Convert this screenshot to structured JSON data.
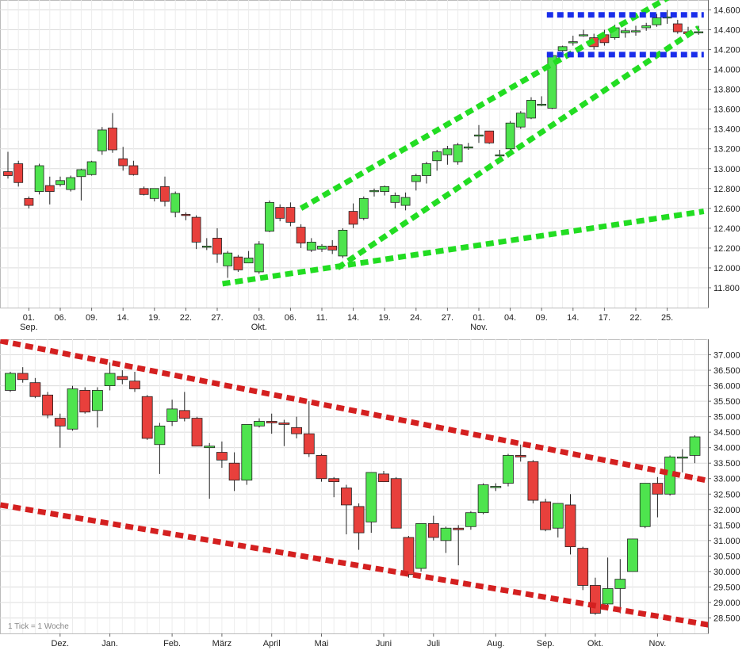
{
  "chart_data": [
    {
      "type": "candlestick",
      "title": "",
      "xlabel": "",
      "ylabel": "",
      "ylim": [
        11.6,
        14.7
      ],
      "y_ticks": [
        11.8,
        12.0,
        12.2,
        12.4,
        12.6,
        12.8,
        13.0,
        13.2,
        13.4,
        13.6,
        13.8,
        14.0,
        14.2,
        14.4,
        14.6
      ],
      "y_tick_labels": [
        "11.800",
        "12.000",
        "12.200",
        "12.400",
        "12.600",
        "12.800",
        "13.000",
        "13.200",
        "13.400",
        "13.600",
        "13.800",
        "14.000",
        "14.200",
        "14.400",
        "14.600"
      ],
      "x_ticks": [
        {
          "label": "01.",
          "sub": "Sep.",
          "i": 2
        },
        {
          "label": "06.",
          "i": 5
        },
        {
          "label": "09.",
          "i": 8
        },
        {
          "label": "14.",
          "i": 11
        },
        {
          "label": "19.",
          "i": 14
        },
        {
          "label": "22.",
          "i": 17
        },
        {
          "label": "27.",
          "i": 20
        },
        {
          "label": "03.",
          "sub": "Okt.",
          "i": 24
        },
        {
          "label": "06.",
          "i": 27
        },
        {
          "label": "11.",
          "i": 30
        },
        {
          "label": "14.",
          "i": 33
        },
        {
          "label": "19.",
          "i": 36
        },
        {
          "label": "24.",
          "i": 39
        },
        {
          "label": "27.",
          "i": 42
        },
        {
          "label": "01.",
          "sub": "Nov.",
          "i": 45
        },
        {
          "label": "04.",
          "i": 48
        },
        {
          "label": "09.",
          "i": 51
        },
        {
          "label": "14.",
          "i": 54
        },
        {
          "label": "17.",
          "i": 57
        },
        {
          "label": "22.",
          "i": 60
        },
        {
          "label": "25.",
          "i": 63
        }
      ],
      "candles": [
        {
          "o": 12.97,
          "h": 13.17,
          "l": 12.9,
          "c": 12.93
        },
        {
          "o": 13.05,
          "h": 13.08,
          "l": 12.82,
          "c": 12.86
        },
        {
          "o": 12.7,
          "h": 12.72,
          "l": 12.6,
          "c": 12.63
        },
        {
          "o": 12.77,
          "h": 13.05,
          "l": 12.74,
          "c": 13.03
        },
        {
          "o": 12.83,
          "h": 12.92,
          "l": 12.64,
          "c": 12.77
        },
        {
          "o": 12.84,
          "h": 12.92,
          "l": 12.82,
          "c": 12.88
        },
        {
          "o": 12.79,
          "h": 12.93,
          "l": 12.77,
          "c": 12.91
        },
        {
          "o": 12.92,
          "h": 13.0,
          "l": 12.68,
          "c": 12.99
        },
        {
          "o": 12.94,
          "h": 13.08,
          "l": 12.93,
          "c": 13.07
        },
        {
          "o": 13.18,
          "h": 13.42,
          "l": 13.14,
          "c": 13.39
        },
        {
          "o": 13.41,
          "h": 13.56,
          "l": 13.16,
          "c": 13.19
        },
        {
          "o": 13.1,
          "h": 13.22,
          "l": 12.98,
          "c": 13.03
        },
        {
          "o": 13.03,
          "h": 13.08,
          "l": 12.93,
          "c": 12.94
        },
        {
          "o": 12.8,
          "h": 12.82,
          "l": 12.73,
          "c": 12.74
        },
        {
          "o": 12.7,
          "h": 12.8,
          "l": 12.67,
          "c": 12.8
        },
        {
          "o": 12.82,
          "h": 12.92,
          "l": 12.62,
          "c": 12.67
        },
        {
          "o": 12.56,
          "h": 12.77,
          "l": 12.51,
          "c": 12.75
        },
        {
          "o": 12.54,
          "h": 12.56,
          "l": 12.48,
          "c": 12.53
        },
        {
          "o": 12.51,
          "h": 12.53,
          "l": 12.19,
          "c": 12.26
        },
        {
          "o": 12.22,
          "h": 12.3,
          "l": 12.18,
          "c": 12.22
        },
        {
          "o": 12.3,
          "h": 12.4,
          "l": 12.05,
          "c": 12.14
        },
        {
          "o": 12.02,
          "h": 12.17,
          "l": 11.9,
          "c": 12.15
        },
        {
          "o": 12.11,
          "h": 12.13,
          "l": 11.96,
          "c": 11.98
        },
        {
          "o": 12.05,
          "h": 12.17,
          "l": 12.05,
          "c": 12.1
        },
        {
          "o": 11.96,
          "h": 12.27,
          "l": 11.94,
          "c": 12.24
        },
        {
          "o": 12.37,
          "h": 12.68,
          "l": 12.36,
          "c": 12.66
        },
        {
          "o": 12.61,
          "h": 12.64,
          "l": 12.47,
          "c": 12.5
        },
        {
          "o": 12.61,
          "h": 12.66,
          "l": 12.42,
          "c": 12.46
        },
        {
          "o": 12.41,
          "h": 12.44,
          "l": 12.2,
          "c": 12.25
        },
        {
          "o": 12.18,
          "h": 12.3,
          "l": 12.16,
          "c": 12.26
        },
        {
          "o": 12.19,
          "h": 12.24,
          "l": 12.16,
          "c": 12.22
        },
        {
          "o": 12.22,
          "h": 12.28,
          "l": 12.14,
          "c": 12.18
        },
        {
          "o": 12.12,
          "h": 12.4,
          "l": 12.1,
          "c": 12.38
        },
        {
          "o": 12.57,
          "h": 12.65,
          "l": 12.4,
          "c": 12.44
        },
        {
          "o": 12.5,
          "h": 12.72,
          "l": 12.48,
          "c": 12.7
        },
        {
          "o": 12.78,
          "h": 12.8,
          "l": 12.72,
          "c": 12.78
        },
        {
          "o": 12.77,
          "h": 12.83,
          "l": 12.73,
          "c": 12.82
        },
        {
          "o": 12.66,
          "h": 12.76,
          "l": 12.6,
          "c": 12.73
        },
        {
          "o": 12.63,
          "h": 12.76,
          "l": 12.58,
          "c": 12.71
        },
        {
          "o": 12.87,
          "h": 12.95,
          "l": 12.78,
          "c": 12.93
        },
        {
          "o": 12.93,
          "h": 13.07,
          "l": 12.85,
          "c": 13.05
        },
        {
          "o": 13.08,
          "h": 13.19,
          "l": 12.98,
          "c": 13.17
        },
        {
          "o": 13.14,
          "h": 13.23,
          "l": 13.04,
          "c": 13.2
        },
        {
          "o": 13.07,
          "h": 13.26,
          "l": 13.04,
          "c": 13.24
        },
        {
          "o": 13.22,
          "h": 13.26,
          "l": 13.19,
          "c": 13.22
        },
        {
          "o": 13.34,
          "h": 13.44,
          "l": 13.26,
          "c": 13.34
        },
        {
          "o": 13.38,
          "h": 13.38,
          "l": 13.25,
          "c": 13.26
        },
        {
          "o": 13.14,
          "h": 13.19,
          "l": 13.06,
          "c": 13.14
        },
        {
          "o": 13.2,
          "h": 13.48,
          "l": 13.18,
          "c": 13.46
        },
        {
          "o": 13.42,
          "h": 13.58,
          "l": 13.4,
          "c": 13.56
        },
        {
          "o": 13.51,
          "h": 13.72,
          "l": 13.5,
          "c": 13.69
        },
        {
          "o": 13.65,
          "h": 13.73,
          "l": 13.63,
          "c": 13.65
        },
        {
          "o": 13.61,
          "h": 14.14,
          "l": 13.6,
          "c": 14.14
        },
        {
          "o": 14.19,
          "h": 14.24,
          "l": 14.18,
          "c": 14.23
        },
        {
          "o": 14.27,
          "h": 14.34,
          "l": 14.24,
          "c": 14.28
        },
        {
          "o": 14.35,
          "h": 14.4,
          "l": 14.33,
          "c": 14.35
        },
        {
          "o": 14.32,
          "h": 14.36,
          "l": 14.2,
          "c": 14.23
        },
        {
          "o": 14.35,
          "h": 14.4,
          "l": 14.24,
          "c": 14.27
        },
        {
          "o": 14.32,
          "h": 14.45,
          "l": 14.3,
          "c": 14.42
        },
        {
          "o": 14.37,
          "h": 14.42,
          "l": 14.32,
          "c": 14.39
        },
        {
          "o": 14.38,
          "h": 14.44,
          "l": 14.34,
          "c": 14.39
        },
        {
          "o": 14.42,
          "h": 14.47,
          "l": 14.39,
          "c": 14.44
        },
        {
          "o": 14.45,
          "h": 14.56,
          "l": 14.43,
          "c": 14.52
        },
        {
          "o": 14.53,
          "h": 14.6,
          "l": 14.46,
          "c": 14.53
        },
        {
          "o": 14.46,
          "h": 14.5,
          "l": 14.36,
          "c": 14.38
        },
        {
          "o": 14.38,
          "h": 14.43,
          "l": 14.34,
          "c": 14.36
        },
        {
          "o": 14.38,
          "h": 14.44,
          "l": 14.35,
          "c": 14.38
        }
      ]
    },
    {
      "type": "candlestick",
      "title": "",
      "xlabel": "",
      "ylabel": "",
      "ylim": [
        28.0,
        37.5
      ],
      "y_ticks": [
        28.5,
        29.0,
        29.5,
        30.0,
        30.5,
        31.0,
        31.5,
        32.0,
        32.5,
        33.0,
        33.5,
        34.0,
        34.5,
        35.0,
        35.5,
        36.0,
        36.5,
        37.0
      ],
      "y_tick_labels": [
        "28.500",
        "29.000",
        "29.500",
        "30.000",
        "30.500",
        "31.000",
        "31.500",
        "32.000",
        "32.500",
        "33.000",
        "33.500",
        "34.000",
        "34.500",
        "35.000",
        "35.500",
        "36.000",
        "36.500",
        "37.000"
      ],
      "x_ticks": [
        {
          "label": "Dez.",
          "i": 4
        },
        {
          "label": "Jan.",
          "i": 8
        },
        {
          "label": "Feb.",
          "i": 13
        },
        {
          "label": "März",
          "i": 17
        },
        {
          "label": "April",
          "i": 21
        },
        {
          "label": "Mai",
          "i": 25
        },
        {
          "label": "Juni",
          "i": 30
        },
        {
          "label": "Juli",
          "i": 34
        },
        {
          "label": "Aug.",
          "i": 39
        },
        {
          "label": "Sep.",
          "i": 43
        },
        {
          "label": "Okt.",
          "i": 47
        },
        {
          "label": "Nov.",
          "i": 52
        }
      ],
      "footnote": "1 Tick = 1 Woche",
      "candles": [
        {
          "o": 35.85,
          "h": 36.45,
          "l": 35.8,
          "c": 36.4
        },
        {
          "o": 36.4,
          "h": 36.6,
          "l": 36.1,
          "c": 36.2
        },
        {
          "o": 36.1,
          "h": 36.25,
          "l": 35.6,
          "c": 35.65
        },
        {
          "o": 35.7,
          "h": 35.8,
          "l": 34.95,
          "c": 35.05
        },
        {
          "o": 34.95,
          "h": 35.1,
          "l": 34.0,
          "c": 34.7
        },
        {
          "o": 34.6,
          "h": 36.0,
          "l": 34.55,
          "c": 35.9
        },
        {
          "o": 35.85,
          "h": 35.95,
          "l": 35.1,
          "c": 35.15
        },
        {
          "o": 35.2,
          "h": 35.95,
          "l": 34.65,
          "c": 35.85
        },
        {
          "o": 36.0,
          "h": 36.75,
          "l": 35.85,
          "c": 36.4
        },
        {
          "o": 36.3,
          "h": 36.5,
          "l": 36.05,
          "c": 36.2
        },
        {
          "o": 36.15,
          "h": 36.45,
          "l": 35.8,
          "c": 35.9
        },
        {
          "o": 35.65,
          "h": 35.7,
          "l": 34.25,
          "c": 34.3
        },
        {
          "o": 34.1,
          "h": 34.8,
          "l": 33.15,
          "c": 34.7
        },
        {
          "o": 34.85,
          "h": 35.55,
          "l": 34.7,
          "c": 35.25
        },
        {
          "o": 35.2,
          "h": 35.8,
          "l": 34.85,
          "c": 34.95
        },
        {
          "o": 34.95,
          "h": 35.0,
          "l": 34.05,
          "c": 34.05
        },
        {
          "o": 34.0,
          "h": 34.15,
          "l": 32.35,
          "c": 34.05
        },
        {
          "o": 33.85,
          "h": 34.2,
          "l": 33.35,
          "c": 33.6
        },
        {
          "o": 33.5,
          "h": 33.85,
          "l": 32.6,
          "c": 32.95
        },
        {
          "o": 32.95,
          "h": 34.75,
          "l": 32.8,
          "c": 34.75
        },
        {
          "o": 34.7,
          "h": 34.95,
          "l": 34.65,
          "c": 34.85
        },
        {
          "o": 34.85,
          "h": 35.1,
          "l": 34.45,
          "c": 34.8
        },
        {
          "o": 34.8,
          "h": 34.9,
          "l": 34.05,
          "c": 34.75
        },
        {
          "o": 34.65,
          "h": 35.0,
          "l": 34.3,
          "c": 34.45
        },
        {
          "o": 34.45,
          "h": 35.5,
          "l": 33.7,
          "c": 33.8
        },
        {
          "o": 33.75,
          "h": 33.8,
          "l": 32.9,
          "c": 33.0
        },
        {
          "o": 33.0,
          "h": 33.05,
          "l": 32.4,
          "c": 32.9
        },
        {
          "o": 32.7,
          "h": 32.8,
          "l": 31.2,
          "c": 32.15
        },
        {
          "o": 32.1,
          "h": 32.2,
          "l": 30.7,
          "c": 31.25
        },
        {
          "o": 31.6,
          "h": 33.2,
          "l": 31.25,
          "c": 33.2
        },
        {
          "o": 33.15,
          "h": 33.25,
          "l": 32.9,
          "c": 32.9
        },
        {
          "o": 33.0,
          "h": 33.05,
          "l": 31.4,
          "c": 31.4
        },
        {
          "o": 31.1,
          "h": 31.15,
          "l": 29.8,
          "c": 29.9
        },
        {
          "o": 30.1,
          "h": 31.55,
          "l": 30.0,
          "c": 31.55
        },
        {
          "o": 31.55,
          "h": 31.8,
          "l": 31.0,
          "c": 31.1
        },
        {
          "o": 31.0,
          "h": 31.45,
          "l": 30.6,
          "c": 31.4
        },
        {
          "o": 31.4,
          "h": 31.5,
          "l": 30.2,
          "c": 31.35
        },
        {
          "o": 31.45,
          "h": 31.95,
          "l": 31.35,
          "c": 31.9
        },
        {
          "o": 31.9,
          "h": 32.85,
          "l": 31.85,
          "c": 32.8
        },
        {
          "o": 32.75,
          "h": 32.85,
          "l": 32.6,
          "c": 32.75
        },
        {
          "o": 32.85,
          "h": 33.8,
          "l": 32.75,
          "c": 33.75
        },
        {
          "o": 33.75,
          "h": 34.1,
          "l": 33.55,
          "c": 33.7
        },
        {
          "o": 33.55,
          "h": 33.6,
          "l": 32.2,
          "c": 32.3
        },
        {
          "o": 32.25,
          "h": 32.35,
          "l": 31.3,
          "c": 31.35
        },
        {
          "o": 31.4,
          "h": 32.2,
          "l": 31.1,
          "c": 32.2
        },
        {
          "o": 32.15,
          "h": 32.5,
          "l": 30.55,
          "c": 30.8
        },
        {
          "o": 30.75,
          "h": 30.8,
          "l": 29.4,
          "c": 29.55
        },
        {
          "o": 29.55,
          "h": 29.8,
          "l": 28.6,
          "c": 28.65
        },
        {
          "o": 28.95,
          "h": 30.45,
          "l": 28.8,
          "c": 29.45
        },
        {
          "o": 29.45,
          "h": 30.4,
          "l": 28.65,
          "c": 29.75
        },
        {
          "o": 30.0,
          "h": 31.05,
          "l": 30.0,
          "c": 31.05
        },
        {
          "o": 31.45,
          "h": 32.85,
          "l": 31.4,
          "c": 32.85
        },
        {
          "o": 32.85,
          "h": 33.05,
          "l": 31.75,
          "c": 32.5
        },
        {
          "o": 32.5,
          "h": 33.75,
          "l": 32.45,
          "c": 33.7
        },
        {
          "o": 33.7,
          "h": 33.95,
          "l": 33.2,
          "c": 33.7
        },
        {
          "o": 33.75,
          "h": 34.4,
          "l": 33.5,
          "c": 34.35
        },
        {
          "o": 34.3,
          "h": 34.4,
          "l": 33.8,
          "c": 33.9
        }
      ]
    }
  ],
  "overlays": {
    "top": {
      "green_lines": [
        {
          "from": [
            28.0,
            12.6
          ],
          "to": [
            66.0,
            14.9
          ]
        },
        {
          "from": [
            31.5,
            12.0
          ],
          "to": [
            66.0,
            14.42
          ]
        },
        {
          "from": [
            20.5,
            11.84
          ],
          "to": [
            66.5,
            12.57
          ]
        }
      ],
      "blue_lines": [
        {
          "from": [
            51.5,
            14.55
          ],
          "to": [
            66.5,
            14.55
          ]
        },
        {
          "from": [
            51.5,
            14.15
          ],
          "to": [
            66.5,
            14.15
          ]
        }
      ]
    },
    "bottom": {
      "red_lines": [
        {
          "from": [
            -0.8,
            37.45
          ],
          "to": [
            56.5,
            32.9
          ]
        },
        {
          "from": [
            -0.8,
            32.15
          ],
          "to": [
            56.5,
            28.25
          ]
        }
      ]
    }
  },
  "colors": {
    "up": "#4ee44e",
    "down": "#e8403c",
    "green_overlay": "#22dd22",
    "blue_overlay": "#1a2eea",
    "red_overlay": "#d42020",
    "grid": "#dcdcdc",
    "axis": "#666666"
  }
}
